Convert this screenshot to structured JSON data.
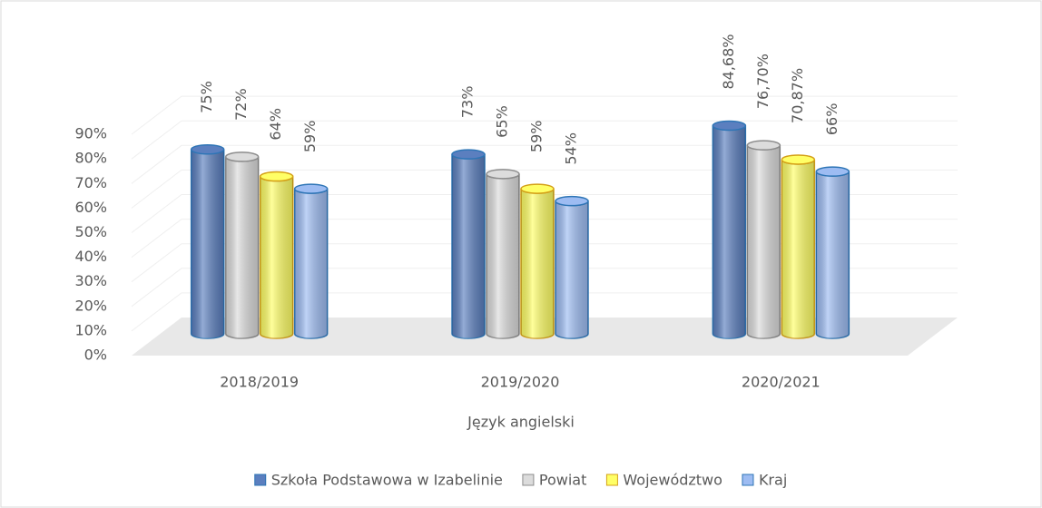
{
  "chart_data": {
    "type": "bar",
    "x_label": "Język angielski",
    "categories": [
      "2018/2019",
      "2019/2020",
      "2020/2021"
    ],
    "series": [
      {
        "name": "Szkoła Podstawowa w Izabelinie",
        "color": "#5b7fbf",
        "stroke": "#2e75b6",
        "values": [
          75,
          73,
          84.68
        ],
        "value_labels": [
          "75%",
          "73%",
          "84,68%"
        ]
      },
      {
        "name": "Powiat",
        "color": "#dcdcdc",
        "stroke": "#8c8c8c",
        "values": [
          72,
          65,
          76.7
        ],
        "value_labels": [
          "72%",
          "65%",
          "76,70%"
        ]
      },
      {
        "name": "Województwo",
        "color": "#ffff66",
        "stroke": "#d4a017",
        "values": [
          64,
          59,
          70.87
        ],
        "value_labels": [
          "64%",
          "59%",
          "70,87%"
        ]
      },
      {
        "name": "Kraj",
        "color": "#9dbcf2",
        "stroke": "#2e75b6",
        "values": [
          59,
          54,
          66
        ],
        "value_labels": [
          "59%",
          "54%",
          "66%"
        ]
      }
    ],
    "ylim": [
      0,
      100
    ],
    "yticks": [
      {
        "value": 0,
        "label": "0%"
      },
      {
        "value": 10,
        "label": "10%"
      },
      {
        "value": 20,
        "label": "20%"
      },
      {
        "value": 30,
        "label": "30%"
      },
      {
        "value": 40,
        "label": "40%"
      },
      {
        "value": 50,
        "label": "50%"
      },
      {
        "value": 60,
        "label": "60%"
      },
      {
        "value": 70,
        "label": "70%"
      },
      {
        "value": 80,
        "label": "80%"
      },
      {
        "value": 90,
        "label": "90%"
      }
    ],
    "grid": true,
    "legend": "bottom"
  }
}
